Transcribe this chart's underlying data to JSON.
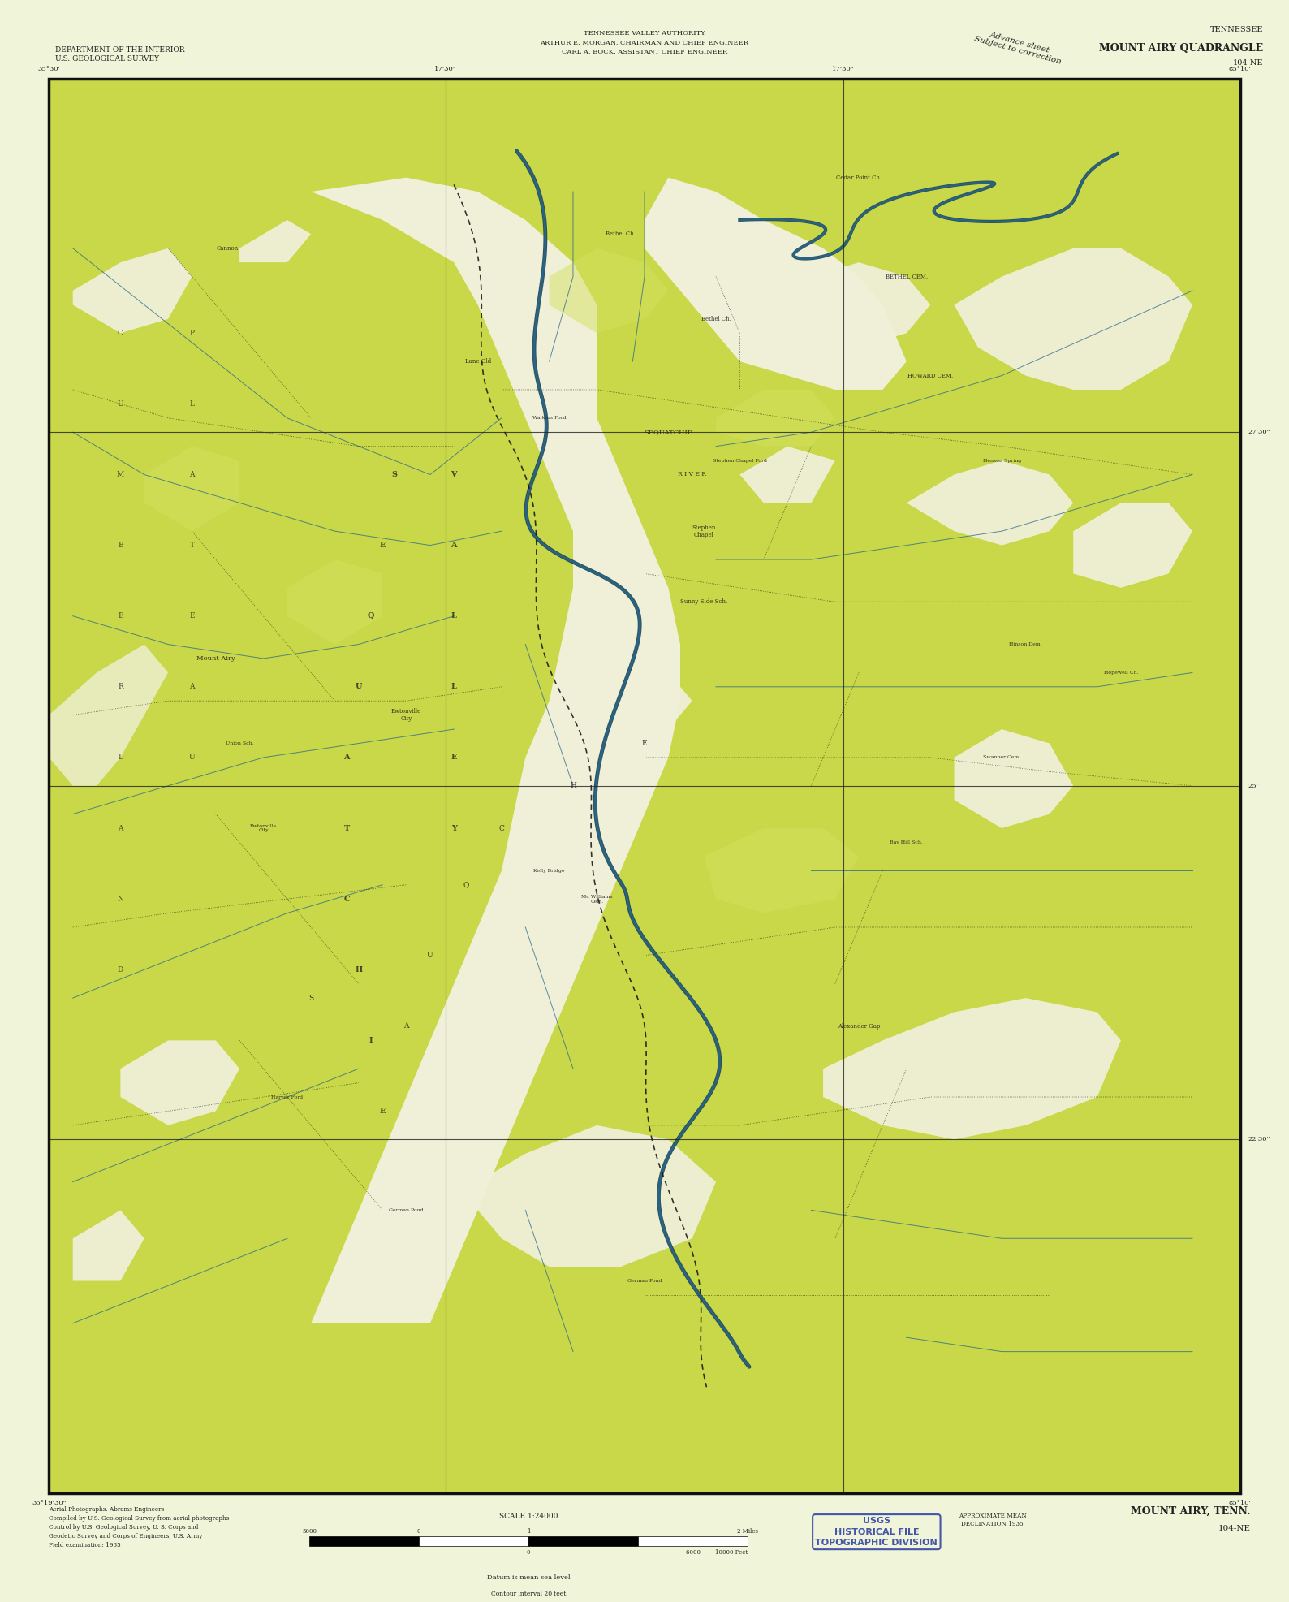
{
  "title": "MOUNT AIRY, TENN.",
  "subtitle": "104-NE",
  "top_left_agency": "DEPARTMENT OF THE INTERIOR\nU.S. GEOLOGICAL SURVEY",
  "top_center_agency": "TENNESSEE VALLEY AUTHORITY\nARTHUR E. MORGAN, CHAIRMAN AND CHIEF ENGINEER\nCARL A. BOCK, ASSISTANT CHIEF ENGINEER",
  "advance_sheet": "Advance sheet\nSubject to correction",
  "bottom_left_notes": "Aerial Photographs: Abrams Engineers\nCompiled by U.S. Geological Survey from aerial photographs\nControl by U.S. Geological Survey, U. S. Corps and\nGeodetic Survey and Corps of Engineers, U.S. Army\nField examination: 1935",
  "bottom_center_text": "Datum is mean sea level",
  "bottom_right_stamp": "USGS\nHISTORICAL FILE\nTOPOGRAPHIC DIVISION",
  "bottom_right_title": "MOUNT AIRY, TENN.\n104-NE",
  "contour_interval": "Contour interval 20 feet",
  "approx_mean_decl": "APPROXIMATE MEAN\nDECLINATION 1935",
  "map_bg_green": "#c8d848",
  "map_valley_cream": "#f0f0d8",
  "map_green_light": "#d4e060",
  "page_bg_color": "#f0f4d8",
  "border_color": "#111111",
  "grid_color": "#222222",
  "water_color": "#2a6688",
  "road_color": "#111111",
  "text_color": "#222222",
  "stamp_color": "#4455aa",
  "fig_width": 15.88,
  "fig_height": 19.73,
  "dpi": 100,
  "ml": 0.038,
  "mr": 0.962,
  "mt": 0.951,
  "mb": 0.068
}
